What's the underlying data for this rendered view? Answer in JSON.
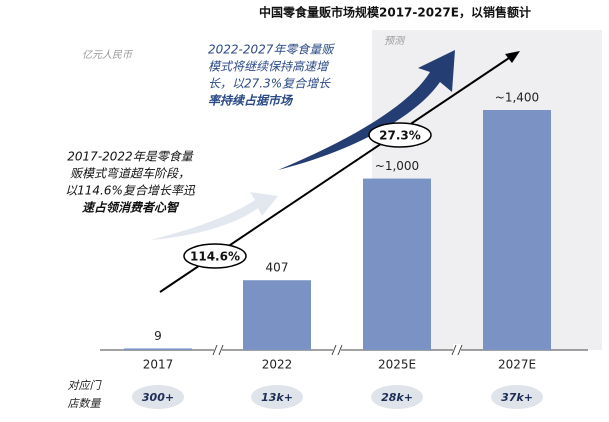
{
  "chart_data": {
    "type": "bar",
    "title": "中国零食量贩市场规模2017-2027E，以销售额计",
    "unit": "亿元人民币",
    "forecast_label": "预测",
    "categories": [
      "2017",
      "2022",
      "2025E",
      "2027E"
    ],
    "values": [
      9,
      407,
      1000,
      1400
    ],
    "value_labels": [
      "9",
      "407",
      "~1,000",
      "~1,400"
    ],
    "color": "#7a93c4",
    "growth": [
      {
        "label": "114.6%"
      },
      {
        "label": "27.3%"
      }
    ],
    "annotations": [
      {
        "lines": [
          "2022-2027年零食量贩",
          "模式将继续保持高速增",
          "长，以27.3%复合增长",
          "率持续占据市场"
        ]
      },
      {
        "lines": [
          "2017-2022年是零食量",
          "贩模式弯道超车阶段，",
          "以114.6%复合增长率迅",
          "速占领消费者心智"
        ]
      }
    ],
    "store_counts": {
      "label_lines": [
        "对应门",
        "店数量"
      ],
      "values": [
        "300+",
        "13k+",
        "28k+",
        "37k+"
      ]
    }
  }
}
